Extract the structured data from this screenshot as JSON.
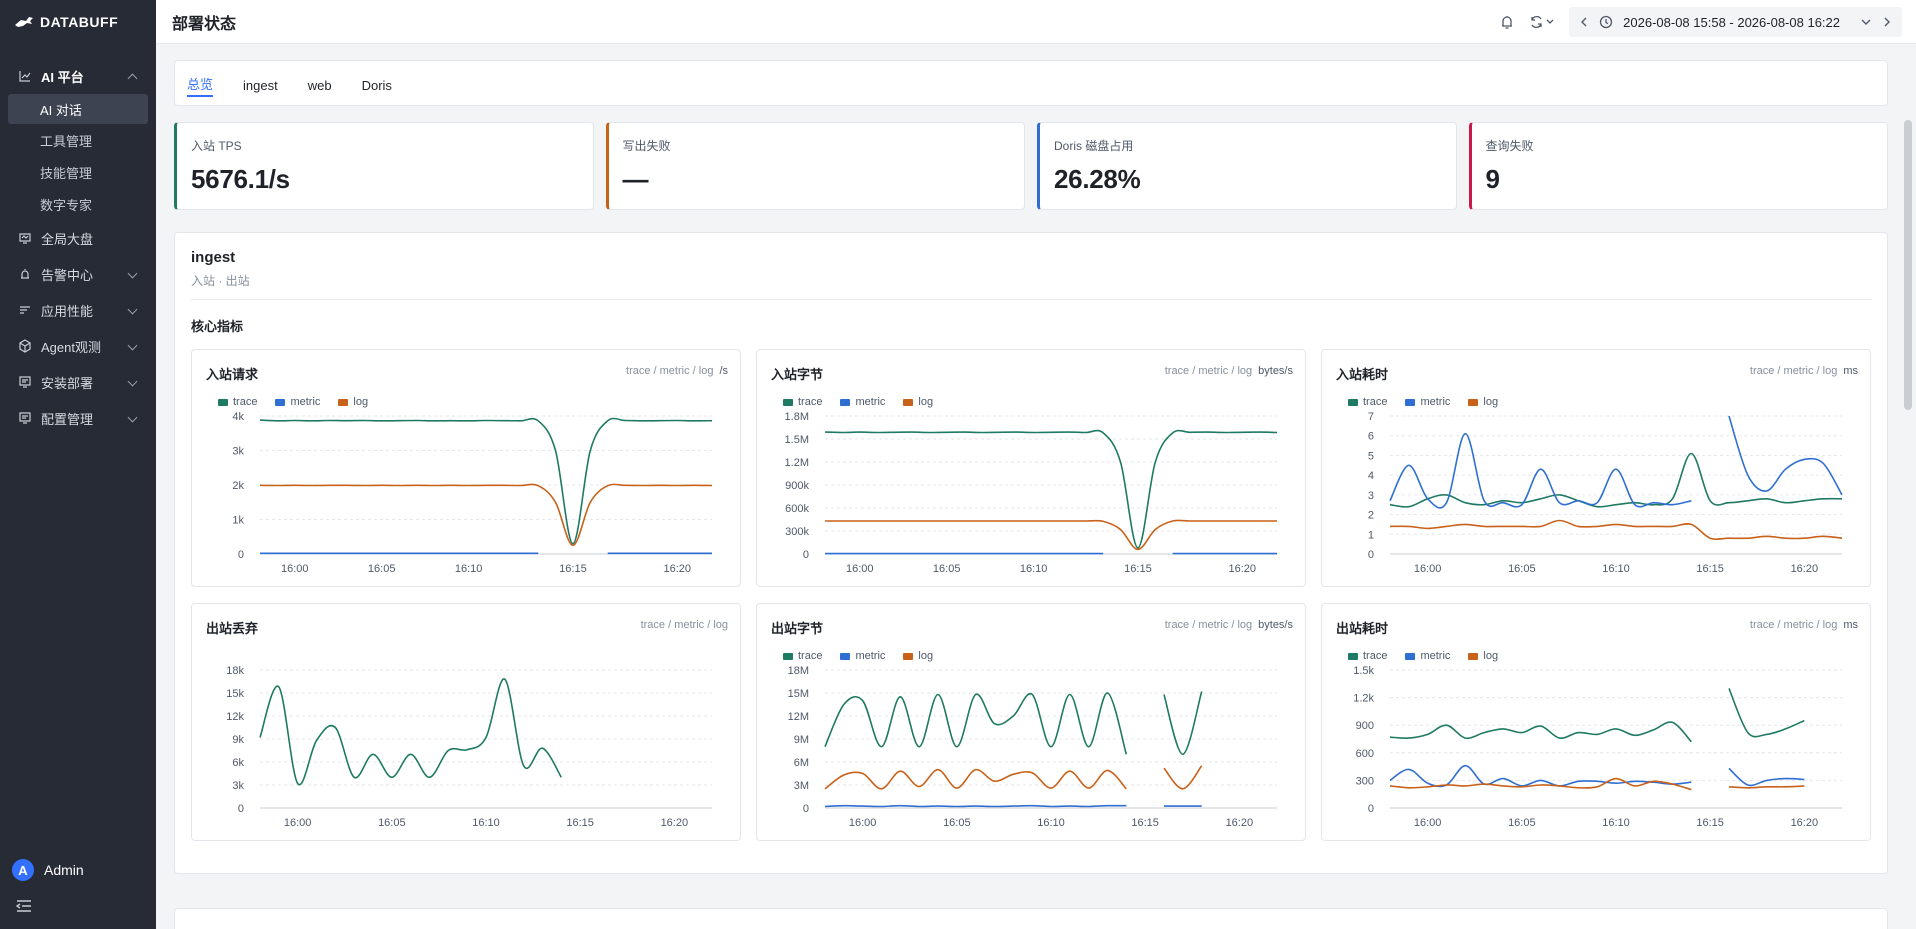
{
  "app": {
    "logo_text": "DATABUFF"
  },
  "sidebar": {
    "sections": [
      {
        "label": "AI 平台",
        "icon": "chart-icon",
        "open": true,
        "children": [
          "AI 对话",
          "工具管理",
          "技能管理",
          "数字专家"
        ],
        "active_child": 0
      },
      {
        "label": "全局大盘",
        "icon": "monitor-icon",
        "open": false,
        "has_children": false
      },
      {
        "label": "告警中心",
        "icon": "alarm-icon",
        "open": false,
        "has_children": true
      },
      {
        "label": "应用性能",
        "icon": "filter-icon",
        "open": false,
        "has_children": true
      },
      {
        "label": "Agent观测",
        "icon": "cube-icon",
        "open": false,
        "has_children": true
      },
      {
        "label": "安装部署",
        "icon": "list-icon",
        "open": false,
        "has_children": true
      },
      {
        "label": "配置管理",
        "icon": "list-icon",
        "open": false,
        "has_children": true
      }
    ],
    "user": {
      "avatar_letter": "A",
      "name": "Admin"
    }
  },
  "header": {
    "title": "部署状态",
    "time_range": "2026-08-08 15:58 - 2026-08-08 16:22"
  },
  "tabs": [
    "总览",
    "ingest",
    "web",
    "Doris"
  ],
  "active_tab": 0,
  "stats": [
    {
      "label": "入站 TPS",
      "value": "5676.1/s",
      "color": "#1f7a63"
    },
    {
      "label": "写出失败",
      "value": "—",
      "color": "#c8611a"
    },
    {
      "label": "Doris 磁盘占用",
      "value": "26.28%",
      "color": "#2f6fd1"
    },
    {
      "label": "查询失败",
      "value": "9",
      "color": "#c8194a"
    }
  ],
  "section": {
    "title": "ingest",
    "subtitle": "入站 · 出站",
    "group_title": "核心指标"
  },
  "series_colors": {
    "trace": "#1f7a63",
    "metric": "#2f6fd1",
    "log": "#c8611a"
  },
  "chart_data": [
    {
      "type": "line",
      "title": "入站请求",
      "meta": "trace / metric / log",
      "unit": "/s",
      "legend": [
        "trace",
        "metric",
        "log"
      ],
      "x": [
        "15:58",
        "15:59",
        "16:00",
        "16:01",
        "16:02",
        "16:03",
        "16:04",
        "16:05",
        "16:06",
        "16:07",
        "16:08",
        "16:09",
        "16:10",
        "16:11",
        "16:12",
        "16:13",
        "16:14",
        "16:14:30",
        "16:15",
        "16:15:30",
        "16:16",
        "16:17",
        "16:18",
        "16:19",
        "16:20",
        "16:21",
        "16:22"
      ],
      "xticks": [
        "16:00",
        "16:05",
        "16:10",
        "16:15",
        "16:20"
      ],
      "yticks": [
        "0",
        "1k",
        "2k",
        "3k",
        "4k"
      ],
      "ylim": [
        0,
        4000
      ],
      "series": [
        {
          "name": "trace",
          "values": [
            3880,
            3860,
            3870,
            3860,
            3870,
            3865,
            3870,
            3860,
            3865,
            3870,
            3860,
            3865,
            3860,
            3870,
            3865,
            3860,
            3860,
            3000,
            300,
            3000,
            3860,
            3870,
            3860,
            3865,
            3870,
            3860,
            3865
          ]
        },
        {
          "name": "metric",
          "values": [
            20,
            20,
            20,
            20,
            20,
            20,
            20,
            20,
            20,
            20,
            20,
            20,
            20,
            20,
            20,
            20,
            20,
            null,
            null,
            null,
            20,
            20,
            20,
            20,
            20,
            20,
            20
          ]
        },
        {
          "name": "log",
          "values": [
            1990,
            1985,
            1990,
            1985,
            1990,
            1990,
            1985,
            1990,
            1985,
            1990,
            1985,
            1990,
            1985,
            1990,
            1990,
            1985,
            1980,
            1500,
            250,
            1500,
            1980,
            1990,
            1985,
            1990,
            1985,
            1990,
            1985
          ]
        }
      ]
    },
    {
      "type": "line",
      "title": "入站字节",
      "meta": "trace / metric / log",
      "unit": "bytes/s",
      "legend": [
        "trace",
        "metric",
        "log"
      ],
      "x": [
        "15:58",
        "15:59",
        "16:00",
        "16:01",
        "16:02",
        "16:03",
        "16:04",
        "16:05",
        "16:06",
        "16:07",
        "16:08",
        "16:09",
        "16:10",
        "16:11",
        "16:12",
        "16:13",
        "16:14",
        "16:14:30",
        "16:15",
        "16:15:30",
        "16:16",
        "16:17",
        "16:18",
        "16:19",
        "16:20",
        "16:21",
        "16:22"
      ],
      "xticks": [
        "16:00",
        "16:05",
        "16:10",
        "16:15",
        "16:20"
      ],
      "yticks": [
        "0",
        "300k",
        "600k",
        "900k",
        "1.2M",
        "1.5M",
        "1.8M"
      ],
      "ylim": [
        0,
        1800000
      ],
      "series": [
        {
          "name": "trace",
          "values": [
            1590000,
            1585000,
            1590000,
            1585000,
            1588000,
            1590000,
            1585000,
            1588000,
            1590000,
            1585000,
            1588000,
            1590000,
            1585000,
            1588000,
            1590000,
            1585000,
            1580000,
            1200000,
            80000,
            1200000,
            1580000,
            1588000,
            1590000,
            1585000,
            1588000,
            1590000,
            1585000
          ]
        },
        {
          "name": "metric",
          "values": [
            5000,
            5000,
            5000,
            5000,
            5000,
            5000,
            5000,
            5000,
            5000,
            5000,
            5000,
            5000,
            5000,
            5000,
            5000,
            5000,
            5000,
            null,
            null,
            null,
            5000,
            5000,
            5000,
            5000,
            5000,
            5000,
            5000
          ]
        },
        {
          "name": "log",
          "values": [
            430000,
            430000,
            430000,
            430000,
            430000,
            430000,
            430000,
            430000,
            430000,
            430000,
            430000,
            430000,
            430000,
            430000,
            430000,
            430000,
            425000,
            320000,
            60000,
            320000,
            430000,
            430000,
            430000,
            430000,
            430000,
            430000,
            430000
          ]
        }
      ]
    },
    {
      "type": "line",
      "title": "入站耗时",
      "meta": "trace / metric / log",
      "unit": "ms",
      "legend": [
        "trace",
        "metric",
        "log"
      ],
      "x": [
        "15:58",
        "15:59",
        "16:00",
        "16:01",
        "16:02",
        "16:03",
        "16:04",
        "16:05",
        "16:06",
        "16:07",
        "16:08",
        "16:09",
        "16:10",
        "16:11",
        "16:12",
        "16:13",
        "16:14",
        "16:15",
        "16:16",
        "16:17",
        "16:18",
        "16:19",
        "16:20",
        "16:21",
        "16:22"
      ],
      "xticks": [
        "16:00",
        "16:05",
        "16:10",
        "16:15",
        "16:20"
      ],
      "yticks": [
        "0",
        "1",
        "2",
        "3",
        "4",
        "5",
        "6",
        "7"
      ],
      "ylim": [
        0,
        7
      ],
      "series": [
        {
          "name": "trace",
          "values": [
            2.5,
            2.4,
            2.8,
            3.0,
            2.6,
            2.5,
            2.7,
            2.6,
            2.8,
            3.0,
            2.7,
            2.4,
            2.5,
            2.6,
            2.5,
            2.8,
            5.1,
            2.7,
            2.6,
            2.7,
            2.8,
            2.6,
            2.7,
            2.8,
            2.8
          ]
        },
        {
          "name": "metric",
          "values": [
            2.7,
            4.5,
            2.8,
            2.6,
            6.1,
            2.7,
            2.6,
            2.5,
            4.3,
            2.6,
            2.7,
            2.6,
            4.3,
            2.5,
            2.6,
            2.5,
            2.7,
            null,
            7.0,
            4.0,
            3.2,
            4.3,
            4.8,
            4.6,
            3.0
          ]
        },
        {
          "name": "log",
          "values": [
            1.4,
            1.4,
            1.3,
            1.4,
            1.5,
            1.4,
            1.4,
            1.4,
            1.4,
            1.7,
            1.4,
            1.4,
            1.5,
            1.4,
            1.4,
            1.4,
            1.5,
            0.8,
            0.8,
            0.8,
            0.9,
            0.8,
            0.8,
            0.9,
            0.8
          ]
        }
      ]
    },
    {
      "type": "line",
      "title": "出站丢弃",
      "meta": "trace / metric / log",
      "unit": "",
      "legend": [],
      "x": [
        "15:58",
        "15:59",
        "16:00",
        "16:01",
        "16:02",
        "16:03",
        "16:04",
        "16:05",
        "16:06",
        "16:07",
        "16:08",
        "16:09",
        "16:10",
        "16:11",
        "16:12",
        "16:13",
        "16:14",
        "16:15",
        "16:16",
        "16:17",
        "16:18",
        "16:19",
        "16:20",
        "16:21",
        "16:22"
      ],
      "xticks": [
        "16:00",
        "16:05",
        "16:10",
        "16:15",
        "16:20"
      ],
      "yticks": [
        "0",
        "3k",
        "6k",
        "9k",
        "12k",
        "15k",
        "18k"
      ],
      "ylim": [
        0,
        18000
      ],
      "series": [
        {
          "name": "trace",
          "values": [
            9200,
            15800,
            3200,
            8800,
            10500,
            4000,
            7000,
            4000,
            7000,
            4000,
            7500,
            7600,
            9200,
            16800,
            5500,
            7800,
            4000,
            null,
            null,
            null,
            null,
            null,
            null,
            null,
            null
          ]
        }
      ]
    },
    {
      "type": "line",
      "title": "出站字节",
      "meta": "trace / metric / log",
      "unit": "bytes/s",
      "legend": [
        "trace",
        "metric",
        "log"
      ],
      "x": [
        "15:58",
        "15:59",
        "16:00",
        "16:01",
        "16:02",
        "16:03",
        "16:04",
        "16:05",
        "16:06",
        "16:07",
        "16:08",
        "16:09",
        "16:10",
        "16:11",
        "16:12",
        "16:13",
        "16:14",
        "16:15",
        "16:16",
        "16:17",
        "16:18",
        "16:19",
        "16:20",
        "16:21",
        "16:22"
      ],
      "xticks": [
        "16:00",
        "16:05",
        "16:10",
        "16:15",
        "16:20"
      ],
      "yticks": [
        "0",
        "3M",
        "6M",
        "9M",
        "12M",
        "15M",
        "18M"
      ],
      "ylim": [
        0,
        18000000
      ],
      "series": [
        {
          "name": "trace",
          "values": [
            8000000,
            13500000,
            14000000,
            8000000,
            14500000,
            8000000,
            14800000,
            8000000,
            14800000,
            11000000,
            12000000,
            14800000,
            8000000,
            14800000,
            8000000,
            15000000,
            7000000,
            null,
            14800000,
            7000000,
            15200000,
            null,
            null,
            null,
            null
          ]
        },
        {
          "name": "metric",
          "values": [
            200000,
            300000,
            250000,
            200000,
            300000,
            200000,
            250000,
            200000,
            250000,
            200000,
            250000,
            300000,
            200000,
            250000,
            200000,
            300000,
            300000,
            null,
            250000,
            250000,
            250000,
            null,
            null,
            null,
            null
          ]
        },
        {
          "name": "log",
          "values": [
            2500000,
            4300000,
            4500000,
            2500000,
            4800000,
            2800000,
            5000000,
            2600000,
            5000000,
            3500000,
            4400000,
            4600000,
            2600000,
            4800000,
            2600000,
            4900000,
            2500000,
            null,
            5200000,
            2500000,
            5500000,
            null,
            null,
            null,
            null
          ]
        }
      ]
    },
    {
      "type": "line",
      "title": "出站耗时",
      "meta": "trace / metric / log",
      "unit": "ms",
      "legend": [
        "trace",
        "metric",
        "log"
      ],
      "x": [
        "15:58",
        "15:59",
        "16:00",
        "16:01",
        "16:02",
        "16:03",
        "16:04",
        "16:05",
        "16:06",
        "16:07",
        "16:08",
        "16:09",
        "16:10",
        "16:11",
        "16:12",
        "16:13",
        "16:14",
        "16:15",
        "16:16",
        "16:17",
        "16:18",
        "16:19",
        "16:20",
        "16:21",
        "16:22"
      ],
      "xticks": [
        "16:00",
        "16:05",
        "16:10",
        "16:15",
        "16:20"
      ],
      "yticks": [
        "0",
        "300",
        "600",
        "900",
        "1.2k",
        "1.5k"
      ],
      "ylim": [
        0,
        1500
      ],
      "series": [
        {
          "name": "trace",
          "values": [
            770,
            760,
            800,
            900,
            760,
            820,
            860,
            820,
            890,
            760,
            820,
            800,
            860,
            790,
            850,
            930,
            720,
            null,
            1300,
            820,
            800,
            860,
            950,
            null,
            null
          ]
        },
        {
          "name": "metric",
          "values": [
            300,
            420,
            270,
            250,
            460,
            260,
            320,
            240,
            300,
            240,
            290,
            290,
            270,
            290,
            280,
            260,
            280,
            null,
            430,
            250,
            300,
            320,
            310,
            null,
            null
          ]
        },
        {
          "name": "log",
          "values": [
            240,
            220,
            230,
            250,
            240,
            260,
            240,
            230,
            250,
            240,
            220,
            230,
            320,
            240,
            290,
            260,
            200,
            null,
            230,
            220,
            230,
            230,
            240,
            null,
            null
          ]
        }
      ]
    }
  ]
}
